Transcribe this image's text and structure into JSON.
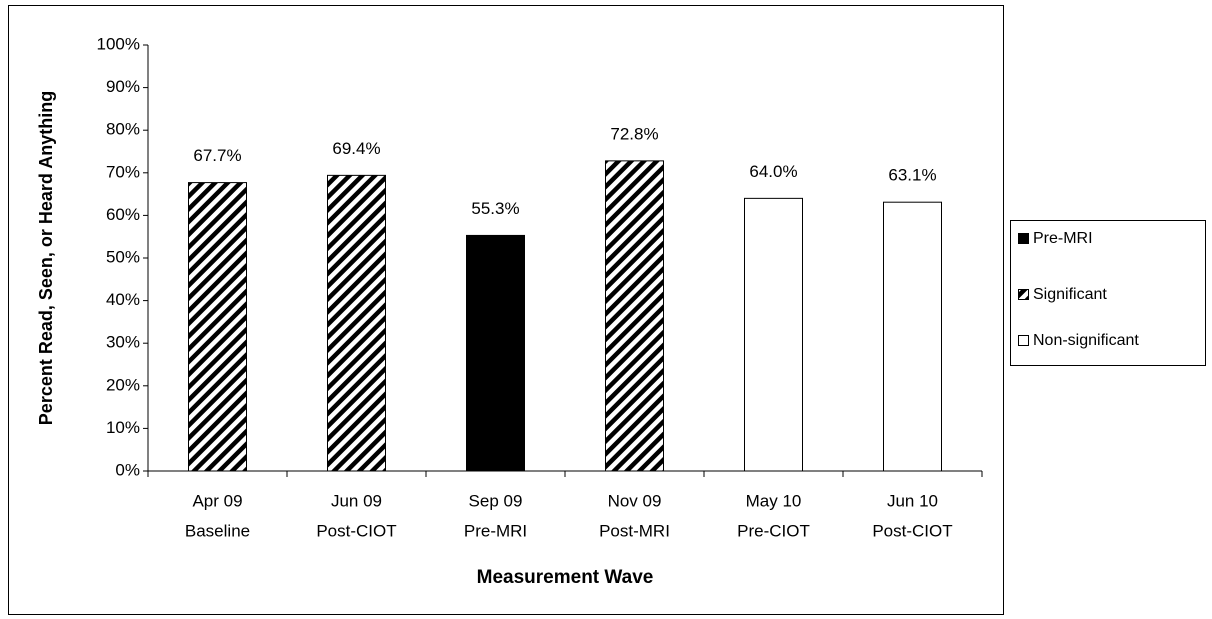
{
  "chart_data": {
    "type": "bar",
    "xlabel": "Measurement Wave",
    "ylabel": "Percent Read, Seen, or Heard Anything",
    "categories": [
      [
        "Apr 09",
        "Baseline"
      ],
      [
        "Jun 09",
        "Post-CIOT"
      ],
      [
        "Sep 09",
        "Pre-MRI"
      ],
      [
        "Nov 09",
        "Post-MRI"
      ],
      [
        "May 10",
        "Pre-CIOT"
      ],
      [
        "Jun 10",
        "Post-CIOT"
      ]
    ],
    "series": [
      {
        "name": "Pre-MRI",
        "color": "#000000",
        "pattern": "solid",
        "values": [
          null,
          null,
          55.3,
          null,
          null,
          null
        ],
        "value_labels": [
          null,
          null,
          "55.3%",
          null,
          null,
          null
        ]
      },
      {
        "name": "Significant",
        "color": "#000000",
        "pattern": "hatch",
        "values": [
          67.7,
          69.4,
          null,
          72.8,
          null,
          null
        ],
        "value_labels": [
          "67.7%",
          "69.4%",
          null,
          "72.8%",
          null,
          null
        ]
      },
      {
        "name": "Non-significant",
        "color": "#ffffff",
        "pattern": "solid",
        "values": [
          null,
          null,
          null,
          null,
          64.0,
          63.1
        ],
        "value_labels": [
          null,
          null,
          null,
          null,
          "64.0%",
          "63.1%"
        ]
      }
    ],
    "ylim": [
      0,
      100
    ],
    "yticks": [
      {
        "value": 0,
        "label": "0%"
      },
      {
        "value": 10,
        "label": "10%"
      },
      {
        "value": 20,
        "label": "20%"
      },
      {
        "value": 30,
        "label": "30%"
      },
      {
        "value": 40,
        "label": "40%"
      },
      {
        "value": 50,
        "label": "50%"
      },
      {
        "value": 60,
        "label": "60%"
      },
      {
        "value": 70,
        "label": "70%"
      },
      {
        "value": 80,
        "label": "80%"
      },
      {
        "value": 90,
        "label": "90%"
      },
      {
        "value": 100,
        "label": "100%"
      }
    ],
    "legend": "right",
    "grid": false
  }
}
